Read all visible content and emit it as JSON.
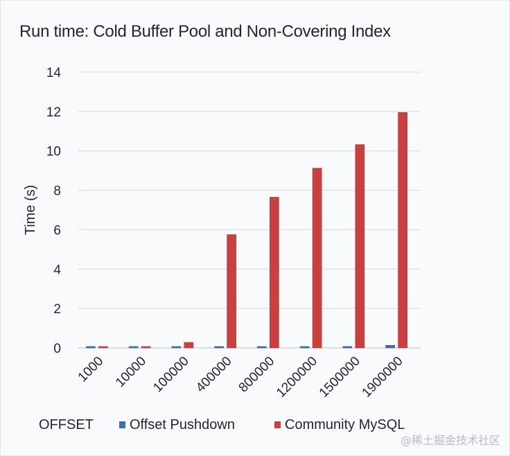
{
  "chart_data": {
    "type": "bar",
    "title": "Run time: Cold Buffer Pool and Non-Covering Index",
    "xlabel": "OFFSET",
    "ylabel": "Time (s)",
    "ylim": [
      0,
      14
    ],
    "yticks": [
      0,
      2,
      4,
      6,
      8,
      10,
      12,
      14
    ],
    "grid": true,
    "legend_position": "bottom",
    "categories": [
      "1000",
      "10000",
      "100000",
      "400000",
      "800000",
      "1200000",
      "1500000",
      "1900000"
    ],
    "series": [
      {
        "name": "Offset Pushdown",
        "color": "#3d6fb5",
        "values": [
          0.05,
          0.05,
          0.05,
          0.05,
          0.05,
          0.05,
          0.05,
          0.13
        ]
      },
      {
        "name": "Community MySQL",
        "color": "#c9403f",
        "values": [
          0.05,
          0.05,
          0.28,
          5.75,
          7.65,
          9.12,
          10.32,
          11.95
        ]
      }
    ]
  },
  "watermark": "@稀土掘金技术社区"
}
